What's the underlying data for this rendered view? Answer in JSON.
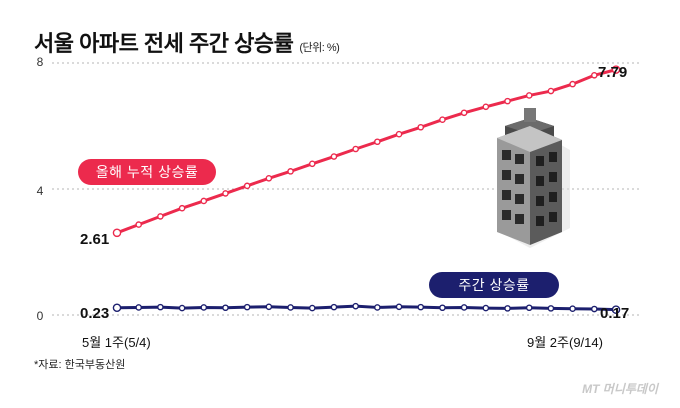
{
  "title": "서울 아파트 전세 주간 상승률",
  "unit": "(단위: %)",
  "source": "*자료: 한국부동산원",
  "logo": "MT 머니투데이",
  "colors": {
    "cumulative": "#ec2a4d",
    "weekly": "#1c1f6e"
  },
  "chart_data": {
    "type": "line",
    "title": "서울 아파트 전세 주간 상승률",
    "ylim": [
      0,
      8
    ],
    "yticks": [
      "0",
      "4",
      "8"
    ],
    "x_start_label": "5월 1주(5/4)",
    "x_end_label": "9월 2주(9/14)",
    "series": [
      {
        "name": "올해 누적 상승률",
        "start_label": "2.61",
        "end_label": "7.79",
        "values": [
          2.61,
          2.87,
          3.13,
          3.39,
          3.62,
          3.86,
          4.1,
          4.34,
          4.56,
          4.8,
          5.03,
          5.27,
          5.5,
          5.74,
          5.96,
          6.2,
          6.42,
          6.61,
          6.79,
          6.97,
          7.11,
          7.33,
          7.61,
          7.79
        ]
      },
      {
        "name": "주간 상승률",
        "start_label": "0.23",
        "end_label": "0.17",
        "values": [
          0.23,
          0.24,
          0.25,
          0.22,
          0.24,
          0.23,
          0.25,
          0.26,
          0.24,
          0.22,
          0.25,
          0.28,
          0.24,
          0.26,
          0.25,
          0.23,
          0.24,
          0.22,
          0.21,
          0.23,
          0.21,
          0.2,
          0.19,
          0.17
        ]
      }
    ]
  }
}
